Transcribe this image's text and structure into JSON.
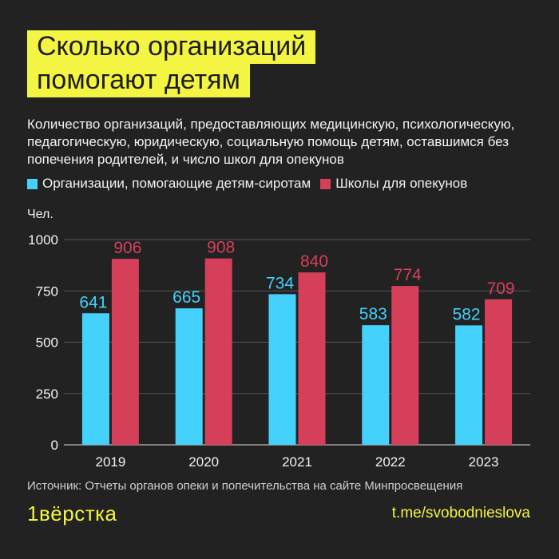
{
  "title": {
    "line1": "Сколько организаций",
    "line2": "помогают детям"
  },
  "subtitle": "Количество организаций, предоставляющих медицинскую, психологическую, педагогическую, юридическую, социальную помощь детям, оставшимся без попечения родителей, и число школ для опекунов",
  "unit_label": "Чел.",
  "source": "Источник: Отчеты органов опеки и попечительства на сайте Минпросвещения",
  "brand": "1вёрстка",
  "channel": "t.me/svobodnieslova",
  "colors": {
    "background": "#222222",
    "accent": "#f4f442",
    "series_orgs": "#44d1fc",
    "series_schools": "#d63f5a"
  },
  "chart_data": {
    "type": "bar",
    "categories": [
      "2019",
      "2020",
      "2021",
      "2022",
      "2023"
    ],
    "series": [
      {
        "name": "Организации, помогающие детям-сиротам",
        "values": [
          641,
          665,
          734,
          583,
          582
        ]
      },
      {
        "name": "Школы для опекунов",
        "values": [
          906,
          908,
          840,
          774,
          709
        ]
      }
    ],
    "yticks": [
      0,
      250,
      500,
      750,
      1000
    ],
    "ylim": [
      0,
      1000
    ],
    "grid": true,
    "legend": "top-left"
  }
}
